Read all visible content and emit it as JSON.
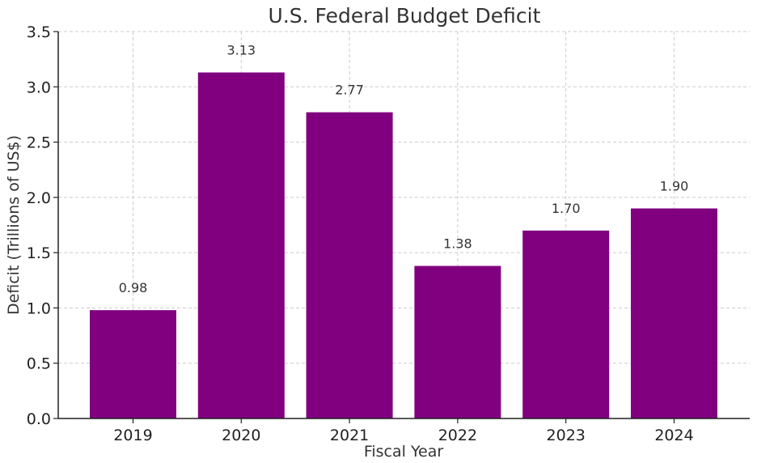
{
  "chart_data": {
    "type": "bar",
    "title": "U.S. Federal Budget Deficit",
    "xlabel": "Fiscal Year",
    "ylabel": "Deficit (Trillions of US$)",
    "categories": [
      "2019",
      "2020",
      "2021",
      "2022",
      "2023",
      "2024"
    ],
    "values": [
      0.98,
      3.13,
      2.77,
      1.38,
      1.7,
      1.9
    ],
    "value_labels": [
      "0.98",
      "3.13",
      "2.77",
      "1.38",
      "1.70",
      "1.90"
    ],
    "ylim": [
      0,
      3.5
    ],
    "yticks": [
      0.0,
      0.5,
      1.0,
      1.5,
      2.0,
      2.5,
      3.0,
      3.5
    ],
    "ytick_labels": [
      "0.0",
      "0.5",
      "1.0",
      "1.5",
      "2.0",
      "2.5",
      "3.0",
      "3.5"
    ],
    "grid": true,
    "bar_color": "#800080"
  }
}
